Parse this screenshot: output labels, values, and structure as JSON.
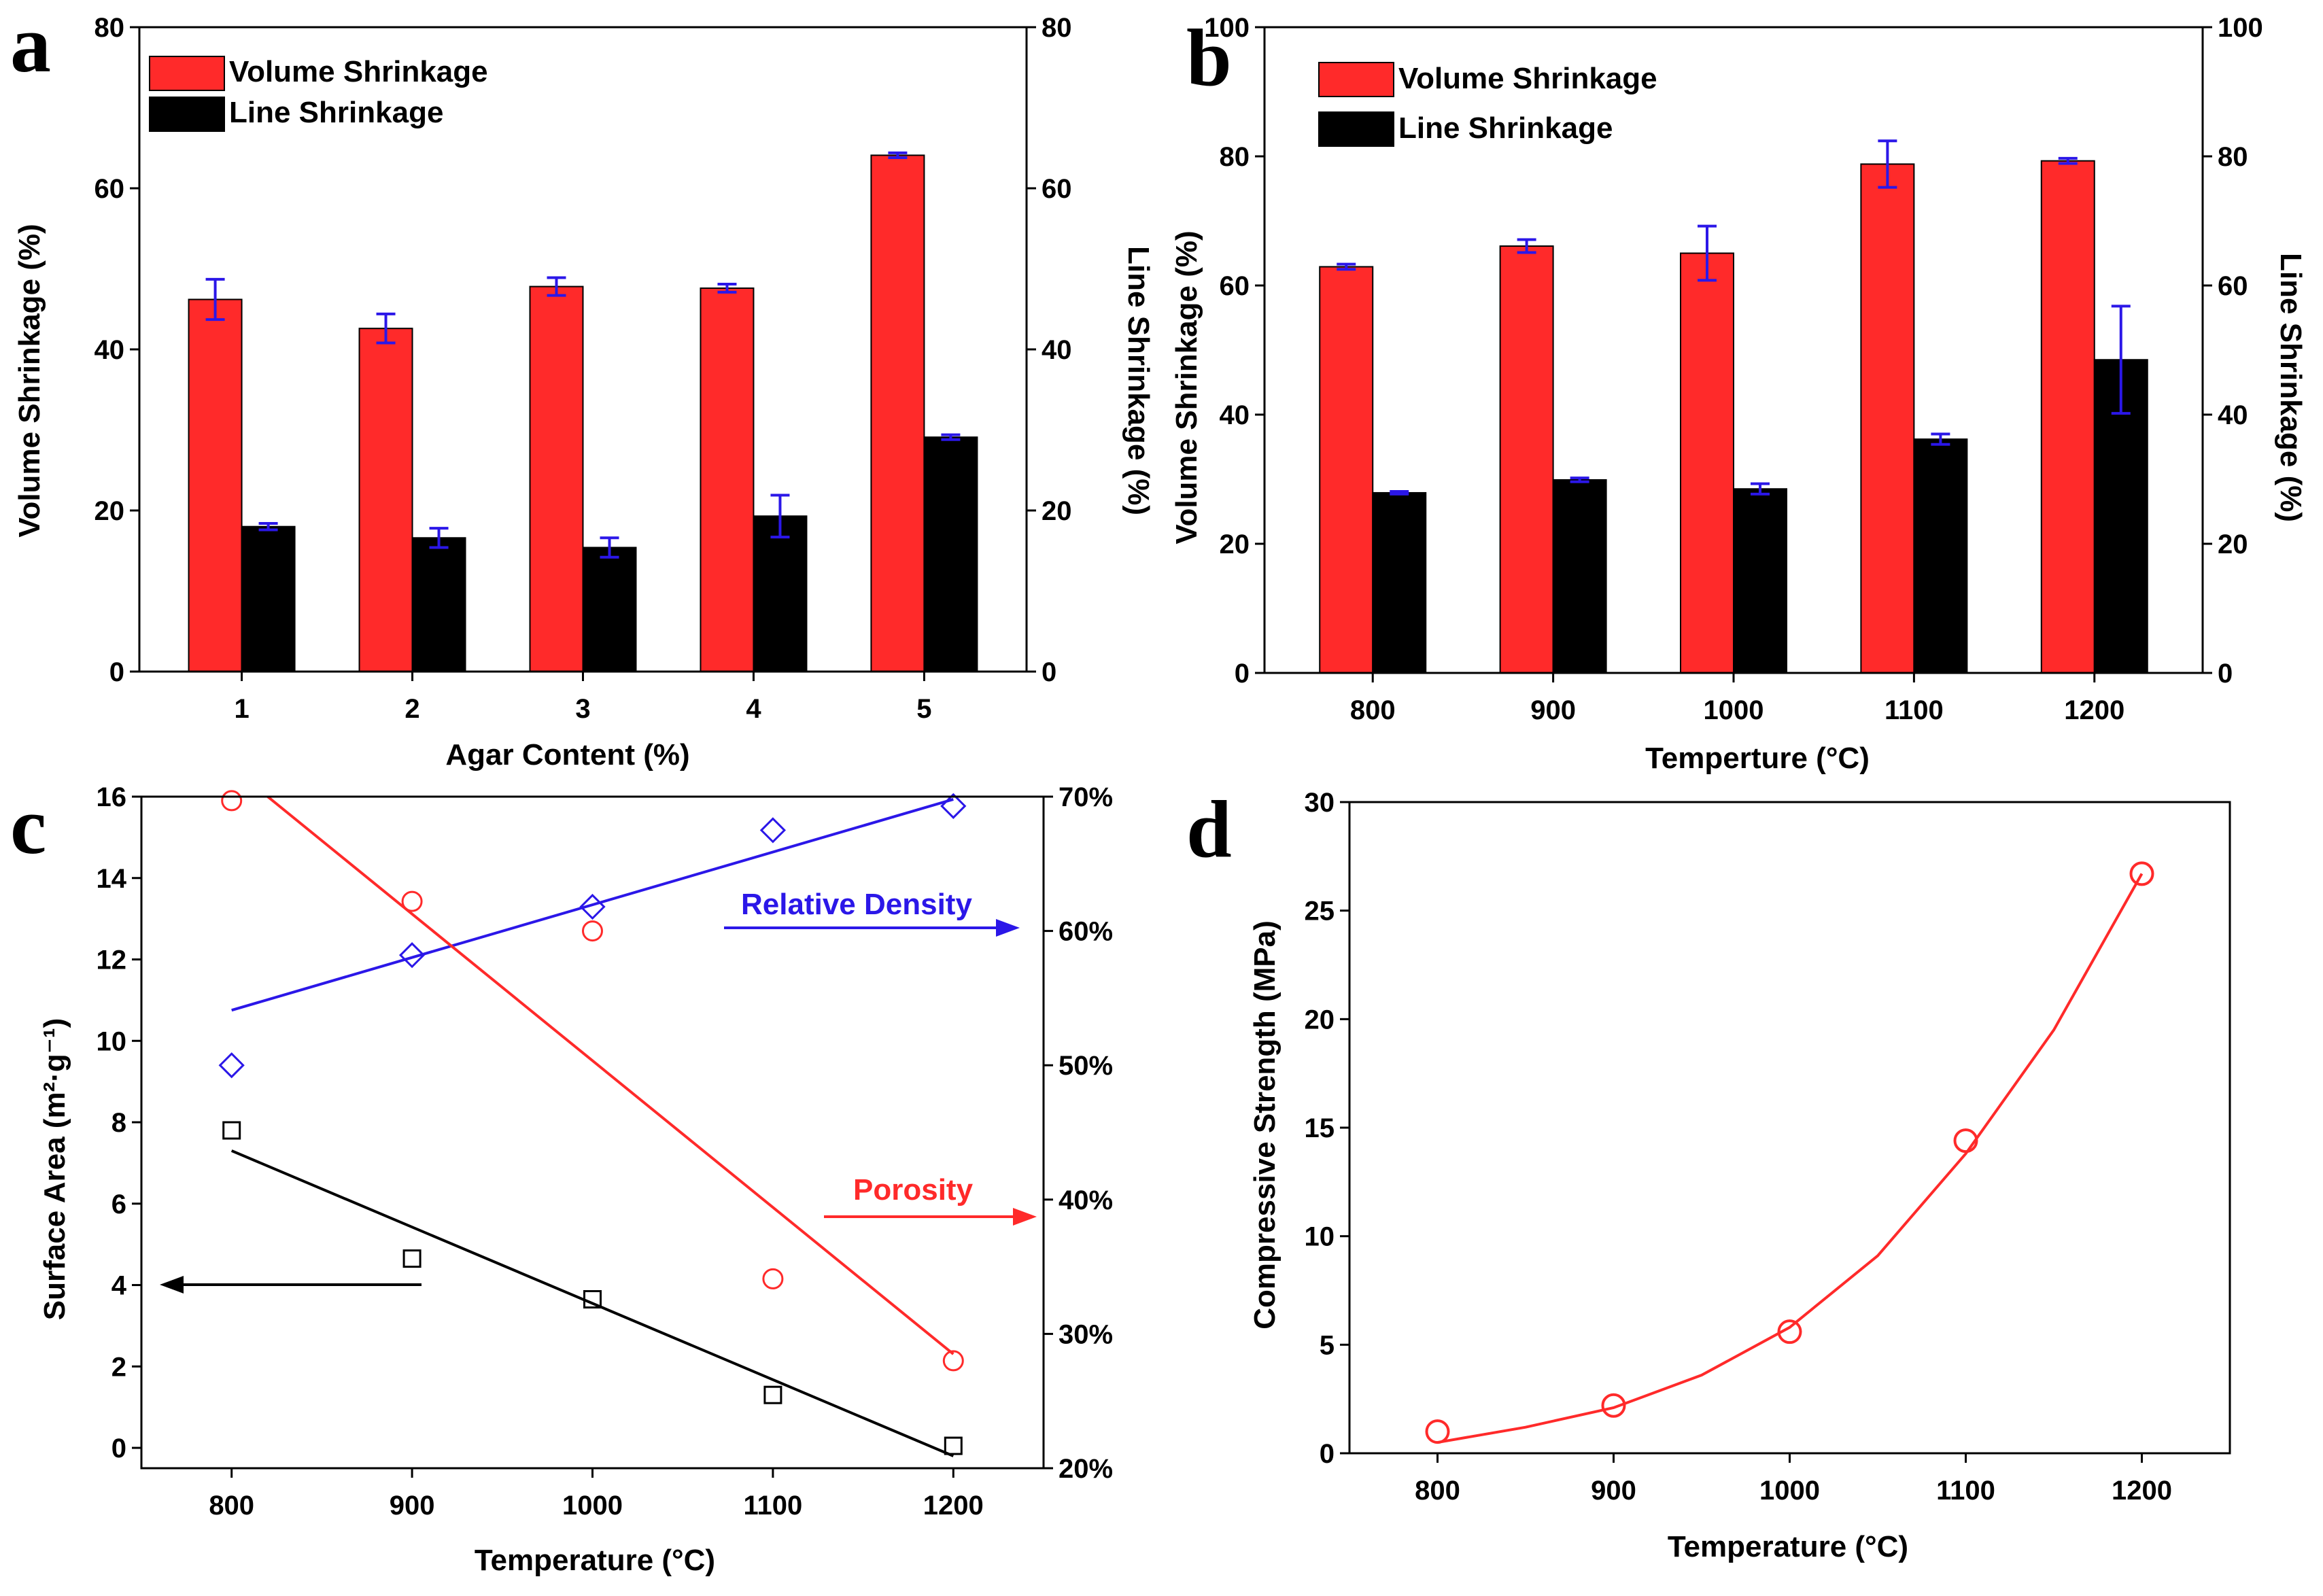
{
  "chart_data": [
    {
      "panel": "a",
      "type": "bar",
      "xlabel": "Agar Content (%)",
      "ylabel": "Volume Shrinkage (%)",
      "y2label": "Line Shrinkage (%)",
      "ylim": [
        0,
        80
      ],
      "y2lim": [
        0,
        80
      ],
      "yticks": [
        0,
        20,
        40,
        60,
        80
      ],
      "categories": [
        "1",
        "2",
        "3",
        "4",
        "5"
      ],
      "series": [
        {
          "name": "Volume Shrinkage",
          "color": "#ff2a2a",
          "axis": "left",
          "values": [
            46.2,
            42.6,
            47.8,
            47.6,
            64.1
          ],
          "errors": [
            2.5,
            1.8,
            1.1,
            0.5,
            0.3
          ]
        },
        {
          "name": "Line Shrinkage",
          "color": "#000000",
          "axis": "right",
          "values": [
            18.0,
            16.6,
            15.4,
            19.3,
            29.1
          ],
          "errors": [
            0.4,
            1.2,
            1.2,
            2.6,
            0.3
          ]
        }
      ],
      "error_color": "#2b17e8",
      "legend": "top-left"
    },
    {
      "panel": "b",
      "type": "bar",
      "xlabel": "Temperture (°C)",
      "ylabel": "Volume Shrinkage (%)",
      "y2label": "Line Shrinkage (%)",
      "ylim": [
        0,
        100
      ],
      "y2lim": [
        0,
        100
      ],
      "yticks": [
        0,
        20,
        40,
        60,
        80,
        100
      ],
      "categories": [
        "800",
        "900",
        "1000",
        "1100",
        "1200"
      ],
      "series": [
        {
          "name": "Volume Shrinkage",
          "color": "#ff2a2a",
          "axis": "left",
          "values": [
            62.9,
            66.1,
            65.0,
            78.8,
            79.3
          ],
          "errors": [
            0.4,
            1.0,
            4.2,
            3.6,
            0.4
          ]
        },
        {
          "name": "Line Shrinkage",
          "color": "#000000",
          "axis": "right",
          "values": [
            27.9,
            29.9,
            28.5,
            36.2,
            48.5
          ],
          "errors": [
            0.2,
            0.3,
            0.8,
            0.8,
            8.3
          ]
        }
      ],
      "error_color": "#2b17e8",
      "legend": "top-left"
    },
    {
      "panel": "c",
      "type": "scatter",
      "xlabel": "Temperature (°C)",
      "ylabel": "Surface Area (m²·g⁻¹)",
      "xlim": [
        750,
        1250
      ],
      "xticks": [
        800,
        900,
        1000,
        1100,
        1200
      ],
      "ylim": [
        -0.5,
        16
      ],
      "yticks": [
        0,
        2,
        4,
        6,
        8,
        10,
        12,
        14,
        16
      ],
      "y2lim": [
        20,
        70
      ],
      "y2ticks": [
        20,
        30,
        40,
        50,
        60,
        70
      ],
      "y2ticklabels": [
        "20%",
        "30%",
        "40%",
        "50%",
        "60%",
        "70%"
      ],
      "series": [
        {
          "name": "Surface Area",
          "axis": "left",
          "marker": "square",
          "color": "#000000",
          "x": [
            800,
            900,
            1000,
            1100,
            1200
          ],
          "y": [
            7.8,
            4.65,
            3.65,
            1.3,
            0.05
          ],
          "fit": {
            "x": [
              800,
              1200
            ],
            "y": [
              7.3,
              -0.2
            ]
          }
        },
        {
          "name": "Relative Density",
          "axis": "right",
          "marker": "diamond",
          "color": "#2b17e8",
          "x": [
            800,
            900,
            1000,
            1100,
            1200
          ],
          "y": [
            50.0,
            58.2,
            61.8,
            67.5,
            69.3
          ],
          "fit": {
            "x": [
              800,
              1200
            ],
            "y": [
              54.1,
              69.8
            ]
          }
        },
        {
          "name": "Porosity",
          "axis": "right",
          "marker": "circle",
          "color": "#ff2a2a",
          "x": [
            800,
            900,
            1000,
            1100,
            1200
          ],
          "y": [
            69.7,
            62.2,
            60.0,
            34.1,
            28.0
          ],
          "fit": {
            "x": [
              820,
              1200
            ],
            "y": [
              70.0,
              28.5
            ]
          }
        }
      ],
      "annotations": [
        {
          "text": "Relative Density",
          "color": "#2b17e8",
          "arrow": "right"
        },
        {
          "text": "Porosity",
          "color": "#ff2a2a",
          "arrow": "right"
        },
        {
          "text": "",
          "color": "#000000",
          "arrow": "left"
        }
      ]
    },
    {
      "panel": "d",
      "type": "scatter",
      "xlabel": "Temperature (°C)",
      "ylabel": "Compressive Strength (MPa)",
      "xlim": [
        750,
        1250
      ],
      "xticks": [
        800,
        900,
        1000,
        1100,
        1200
      ],
      "ylim": [
        0,
        30
      ],
      "yticks": [
        0,
        5,
        10,
        15,
        20,
        25,
        30
      ],
      "series": [
        {
          "name": "Compressive Strength",
          "marker": "circle",
          "color": "#ff2a2a",
          "x": [
            800,
            900,
            1000,
            1100,
            1200
          ],
          "y": [
            1.0,
            2.2,
            5.6,
            14.4,
            26.7
          ],
          "fit": {
            "type": "exponential",
            "x": [
              800,
              850,
              900,
              950,
              1000,
              1050,
              1100,
              1150,
              1200
            ],
            "y": [
              0.5,
              1.2,
              2.1,
              3.6,
              5.8,
              9.1,
              13.8,
              19.5,
              26.7
            ]
          }
        }
      ]
    }
  ],
  "panel_labels": [
    "a",
    "b",
    "c",
    "d"
  ]
}
